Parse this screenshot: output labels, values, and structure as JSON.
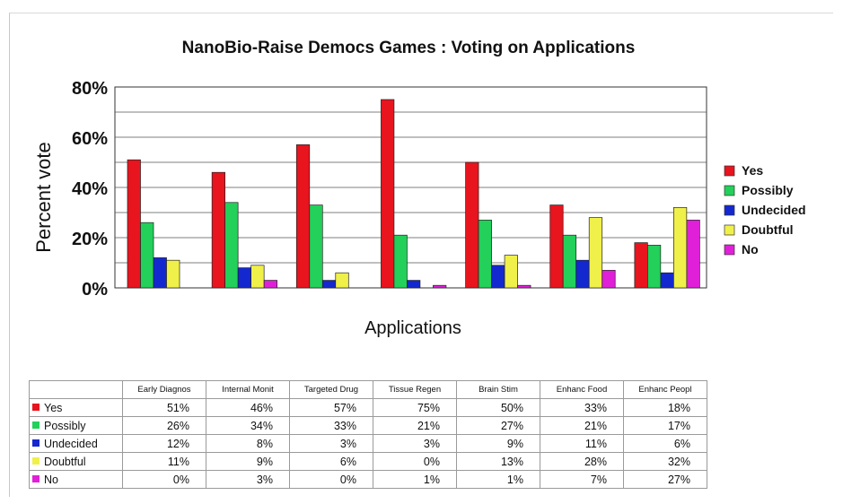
{
  "chart_data": {
    "type": "bar",
    "title": "NanoBio-Raise Democs Games : Voting on Applications",
    "xlabel": "Applications",
    "ylabel": "Percent vote",
    "ylim": [
      0,
      80
    ],
    "yticks": [
      "0%",
      "20%",
      "40%",
      "60%",
      "80%"
    ],
    "grid": true,
    "legend": "right",
    "categories": [
      "Early Diagnos",
      "Internal Monit",
      "Targeted Drug",
      "Tissue Regen",
      "Brain Stim",
      "Enhanc Food",
      "Enhanc Peopl"
    ],
    "series": [
      {
        "name": "Yes",
        "color": "#e8141e",
        "values": [
          51,
          46,
          57,
          75,
          50,
          33,
          18
        ],
        "labels": [
          "51%",
          "46%",
          "57%",
          "75%",
          "50%",
          "33%",
          "18%"
        ]
      },
      {
        "name": "Possibly",
        "color": "#22d05a",
        "values": [
          26,
          34,
          33,
          21,
          27,
          21,
          17
        ],
        "labels": [
          "26%",
          "34%",
          "33%",
          "21%",
          "27%",
          "21%",
          "17%"
        ]
      },
      {
        "name": "Undecided",
        "color": "#1428d0",
        "values": [
          12,
          8,
          3,
          3,
          9,
          11,
          6
        ],
        "labels": [
          "12%",
          "8%",
          "3%",
          "3%",
          "9%",
          "11%",
          "6%"
        ]
      },
      {
        "name": "Doubtful",
        "color": "#f0f04a",
        "values": [
          11,
          9,
          6,
          0,
          13,
          28,
          32
        ],
        "labels": [
          "11%",
          "9%",
          "6%",
          "0%",
          "13%",
          "28%",
          "32%"
        ]
      },
      {
        "name": "No",
        "color": "#e020d8",
        "values": [
          0,
          3,
          0,
          1,
          1,
          7,
          27
        ],
        "labels": [
          "0%",
          "3%",
          "0%",
          "1%",
          "1%",
          "7%",
          "27%"
        ]
      }
    ]
  }
}
